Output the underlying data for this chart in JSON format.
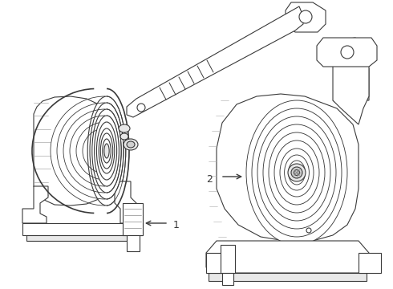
{
  "background_color": "#ffffff",
  "line_color": "#3a3a3a",
  "line_color_light": "#888888",
  "line_width": 0.8,
  "label1": "1",
  "label2": "2",
  "fig_width": 4.9,
  "fig_height": 3.6,
  "dpi": 100
}
